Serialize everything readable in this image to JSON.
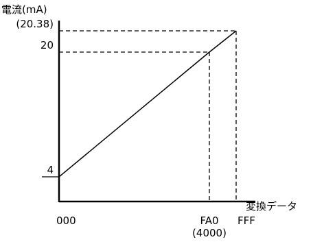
{
  "chart_data": {
    "type": "line",
    "ylabel": "電流(mA)",
    "xlabel": "変換データ",
    "series": [
      {
        "x": [
          0,
          4000,
          4095
        ],
        "y": [
          4,
          20,
          20.38
        ]
      }
    ],
    "x_ticks": [
      {
        "value": 0,
        "label": "000"
      },
      {
        "value": 4000,
        "label": "FA0",
        "sublabel": "(4000)"
      },
      {
        "value": 4095,
        "label": "FFF"
      }
    ],
    "y_ticks": [
      {
        "value": 4,
        "label": "4"
      },
      {
        "value": 20,
        "label": "20"
      },
      {
        "value": 20.38,
        "label": "(20.38)"
      }
    ],
    "reference_points": [
      {
        "x": 4000,
        "y": 20
      },
      {
        "x": 4095,
        "y": 20.38
      }
    ],
    "line_color": "#000000"
  }
}
